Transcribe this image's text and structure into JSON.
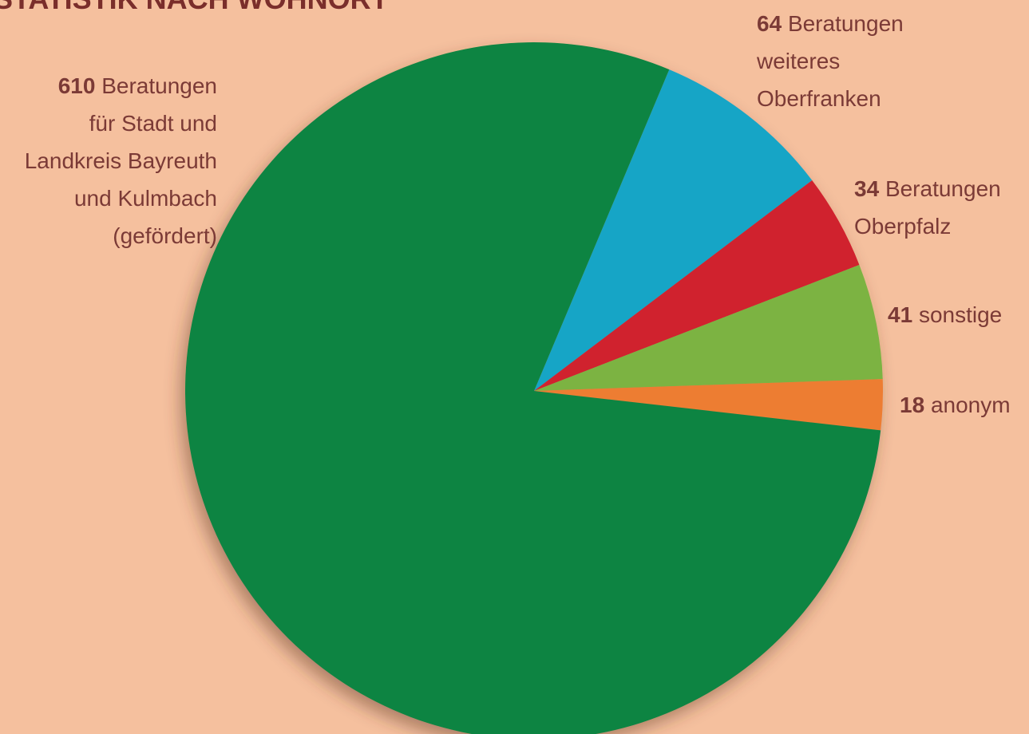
{
  "chart_data": {
    "type": "pie",
    "title": "STATISTIK NACH WOHNORT",
    "categories": [
      "Beratungen\nweiteres\nOberfranken",
      "Beratungen\nOberpfalz",
      "sonstige",
      "anonym",
      "Beratungen\nfür Stadt und\nLandkreis Bayreuth\nund Kulmbach\n(gefördert)"
    ],
    "values": [
      64,
      34,
      41,
      18,
      610
    ],
    "colors": [
      "#17a5c6",
      "#d0202e",
      "#7cb342",
      "#ed7d31",
      "#0e8442"
    ]
  }
}
